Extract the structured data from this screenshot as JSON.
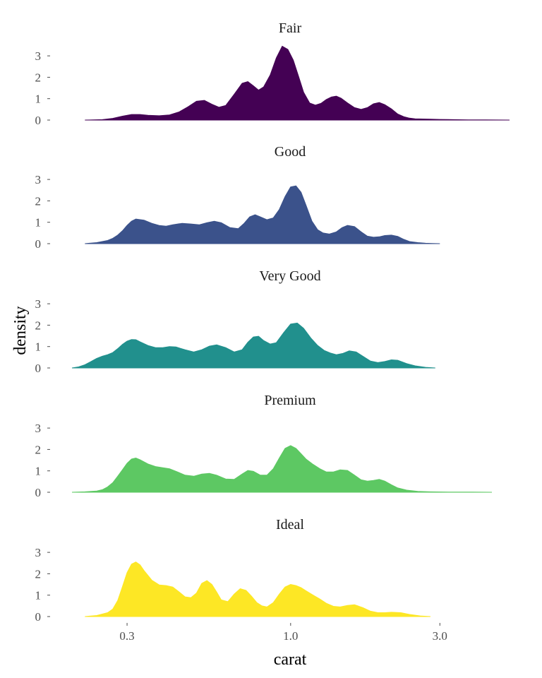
{
  "chart_data": {
    "type": "area",
    "xlabel": "carat",
    "ylabel": "density",
    "x_scale": "log10",
    "xlim": [
      0.2,
      5.01
    ],
    "x_ticks": [
      0.3,
      1.0,
      3.0
    ],
    "x_tick_labels": [
      "0.3",
      "1.0",
      "3.0"
    ],
    "ylim": [
      0,
      3.2
    ],
    "y_ticks": [
      0,
      1,
      2,
      3
    ],
    "y_tick_labels": [
      "0",
      "1",
      "2",
      "3"
    ],
    "grid": false,
    "legend": "none",
    "facets": [
      {
        "name": "Fair",
        "color": "#440154",
        "x": [
          0.22,
          0.25,
          0.27,
          0.29,
          0.31,
          0.33,
          0.35,
          0.38,
          0.41,
          0.44,
          0.47,
          0.5,
          0.53,
          0.56,
          0.59,
          0.62,
          0.66,
          0.7,
          0.73,
          0.76,
          0.79,
          0.82,
          0.86,
          0.9,
          0.94,
          0.98,
          1.02,
          1.06,
          1.1,
          1.15,
          1.2,
          1.25,
          1.3,
          1.35,
          1.4,
          1.45,
          1.52,
          1.6,
          1.68,
          1.76,
          1.84,
          1.92,
          2.0,
          2.1,
          2.2,
          2.3,
          2.4,
          2.5,
          2.65,
          2.8,
          3.0,
          3.3,
          3.7,
          4.2,
          5.01
        ],
        "y": [
          0.0,
          0.02,
          0.08,
          0.18,
          0.26,
          0.26,
          0.22,
          0.2,
          0.24,
          0.38,
          0.62,
          0.88,
          0.92,
          0.74,
          0.6,
          0.68,
          1.2,
          1.72,
          1.8,
          1.6,
          1.4,
          1.55,
          2.1,
          2.9,
          3.45,
          3.3,
          2.8,
          2.05,
          1.3,
          0.8,
          0.7,
          0.78,
          0.96,
          1.08,
          1.12,
          1.02,
          0.8,
          0.58,
          0.5,
          0.58,
          0.76,
          0.82,
          0.72,
          0.52,
          0.28,
          0.16,
          0.09,
          0.06,
          0.05,
          0.04,
          0.03,
          0.02,
          0.01,
          0.01,
          0.0
        ]
      },
      {
        "name": "Good",
        "color": "#3b528b",
        "x": [
          0.22,
          0.24,
          0.26,
          0.27,
          0.28,
          0.29,
          0.3,
          0.31,
          0.32,
          0.34,
          0.36,
          0.38,
          0.4,
          0.42,
          0.45,
          0.48,
          0.51,
          0.54,
          0.57,
          0.6,
          0.64,
          0.68,
          0.71,
          0.74,
          0.77,
          0.8,
          0.84,
          0.88,
          0.92,
          0.96,
          1.0,
          1.04,
          1.08,
          1.12,
          1.17,
          1.22,
          1.27,
          1.33,
          1.4,
          1.46,
          1.52,
          1.6,
          1.68,
          1.76,
          1.84,
          1.92,
          2.0,
          2.1,
          2.2,
          2.3,
          2.4,
          2.55,
          2.7,
          2.85,
          3.0
        ],
        "y": [
          0.0,
          0.05,
          0.15,
          0.25,
          0.4,
          0.6,
          0.85,
          1.05,
          1.15,
          1.1,
          0.95,
          0.85,
          0.82,
          0.88,
          0.95,
          0.92,
          0.88,
          0.98,
          1.05,
          0.98,
          0.75,
          0.7,
          0.95,
          1.25,
          1.35,
          1.25,
          1.12,
          1.2,
          1.6,
          2.2,
          2.65,
          2.7,
          2.4,
          1.8,
          1.05,
          0.65,
          0.5,
          0.45,
          0.55,
          0.75,
          0.85,
          0.8,
          0.55,
          0.35,
          0.3,
          0.32,
          0.38,
          0.4,
          0.34,
          0.2,
          0.1,
          0.05,
          0.02,
          0.01,
          0.0
        ]
      },
      {
        "name": "Very Good",
        "color": "#21908d",
        "x": [
          0.2,
          0.21,
          0.22,
          0.23,
          0.24,
          0.25,
          0.26,
          0.27,
          0.28,
          0.29,
          0.3,
          0.31,
          0.32,
          0.33,
          0.35,
          0.37,
          0.39,
          0.41,
          0.43,
          0.46,
          0.49,
          0.52,
          0.55,
          0.58,
          0.62,
          0.66,
          0.7,
          0.73,
          0.76,
          0.79,
          0.82,
          0.86,
          0.9,
          0.95,
          1.0,
          1.05,
          1.1,
          1.16,
          1.22,
          1.28,
          1.34,
          1.4,
          1.47,
          1.54,
          1.62,
          1.7,
          1.8,
          1.9,
          2.0,
          2.1,
          2.2,
          2.35,
          2.5,
          2.7,
          2.9
        ],
        "y": [
          0.0,
          0.05,
          0.15,
          0.3,
          0.45,
          0.55,
          0.62,
          0.72,
          0.9,
          1.1,
          1.25,
          1.33,
          1.32,
          1.22,
          1.05,
          0.95,
          0.95,
          1.0,
          0.98,
          0.85,
          0.75,
          0.85,
          1.02,
          1.08,
          0.95,
          0.75,
          0.85,
          1.2,
          1.45,
          1.48,
          1.28,
          1.12,
          1.18,
          1.65,
          2.05,
          2.1,
          1.85,
          1.4,
          1.05,
          0.82,
          0.7,
          0.62,
          0.68,
          0.8,
          0.75,
          0.55,
          0.32,
          0.25,
          0.3,
          0.38,
          0.36,
          0.2,
          0.1,
          0.03,
          0.0
        ]
      },
      {
        "name": "Premium",
        "color": "#5dc863",
        "x": [
          0.2,
          0.22,
          0.24,
          0.25,
          0.26,
          0.27,
          0.28,
          0.29,
          0.3,
          0.31,
          0.32,
          0.33,
          0.35,
          0.37,
          0.39,
          0.41,
          0.43,
          0.46,
          0.49,
          0.52,
          0.55,
          0.58,
          0.62,
          0.66,
          0.7,
          0.73,
          0.76,
          0.8,
          0.84,
          0.88,
          0.92,
          0.96,
          1.0,
          1.04,
          1.08,
          1.12,
          1.18,
          1.24,
          1.3,
          1.37,
          1.44,
          1.52,
          1.6,
          1.68,
          1.76,
          1.84,
          1.92,
          2.0,
          2.1,
          2.2,
          2.35,
          2.55,
          2.8,
          3.2,
          3.8,
          4.4
        ],
        "y": [
          0.0,
          0.02,
          0.06,
          0.12,
          0.25,
          0.45,
          0.75,
          1.05,
          1.35,
          1.55,
          1.6,
          1.52,
          1.32,
          1.2,
          1.15,
          1.1,
          0.98,
          0.8,
          0.75,
          0.85,
          0.88,
          0.8,
          0.62,
          0.6,
          0.85,
          1.02,
          0.98,
          0.8,
          0.8,
          1.1,
          1.6,
          2.05,
          2.18,
          2.05,
          1.8,
          1.55,
          1.3,
          1.1,
          0.95,
          0.95,
          1.05,
          1.02,
          0.8,
          0.58,
          0.52,
          0.55,
          0.6,
          0.52,
          0.35,
          0.2,
          0.1,
          0.04,
          0.02,
          0.01,
          0.01,
          0.0
        ]
      },
      {
        "name": "Ideal",
        "color": "#fde725",
        "x": [
          0.22,
          0.24,
          0.26,
          0.27,
          0.28,
          0.29,
          0.3,
          0.31,
          0.32,
          0.33,
          0.34,
          0.36,
          0.38,
          0.4,
          0.42,
          0.44,
          0.46,
          0.48,
          0.5,
          0.52,
          0.54,
          0.56,
          0.58,
          0.6,
          0.63,
          0.66,
          0.69,
          0.72,
          0.75,
          0.78,
          0.81,
          0.84,
          0.88,
          0.92,
          0.96,
          1.0,
          1.04,
          1.08,
          1.12,
          1.18,
          1.24,
          1.3,
          1.37,
          1.44,
          1.52,
          1.6,
          1.7,
          1.8,
          1.9,
          2.0,
          2.1,
          2.25,
          2.4,
          2.6,
          2.8
        ],
        "y": [
          0.0,
          0.05,
          0.18,
          0.35,
          0.75,
          1.4,
          2.05,
          2.45,
          2.55,
          2.42,
          2.15,
          1.7,
          1.48,
          1.45,
          1.38,
          1.15,
          0.92,
          0.88,
          1.1,
          1.55,
          1.68,
          1.5,
          1.15,
          0.78,
          0.7,
          1.05,
          1.3,
          1.22,
          0.95,
          0.65,
          0.5,
          0.45,
          0.65,
          1.05,
          1.38,
          1.5,
          1.45,
          1.35,
          1.2,
          1.0,
          0.82,
          0.62,
          0.48,
          0.45,
          0.52,
          0.55,
          0.42,
          0.25,
          0.18,
          0.18,
          0.2,
          0.18,
          0.1,
          0.03,
          0.0
        ]
      }
    ]
  }
}
